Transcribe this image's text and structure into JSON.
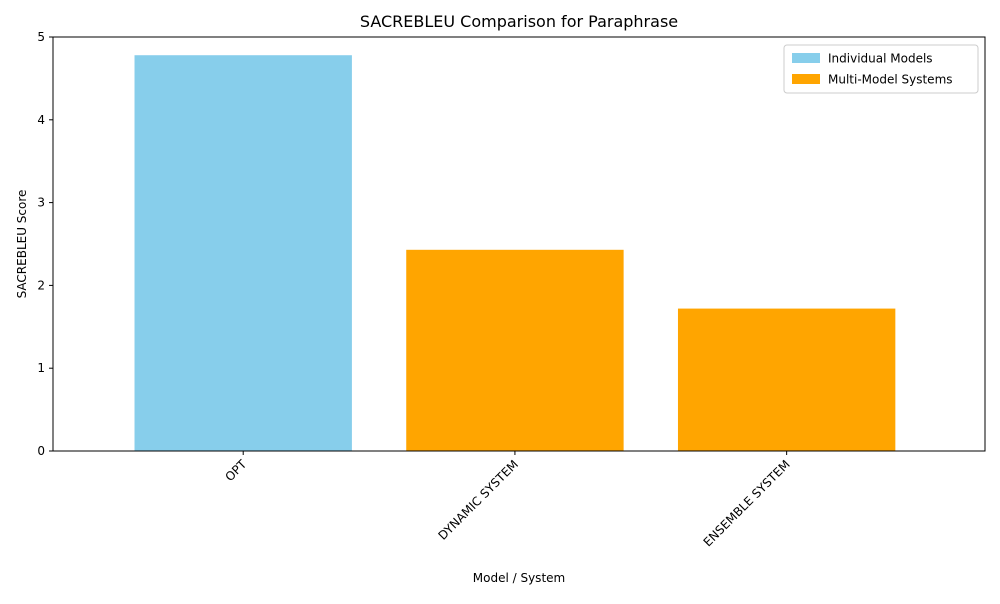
{
  "chart_data": {
    "type": "bar",
    "title": "SACREBLEU Comparison for Paraphrase",
    "xlabel": "Model / System",
    "ylabel": "SACREBLEU Score",
    "categories": [
      "OPT",
      "DYNAMIC SYSTEM",
      "ENSEMBLE SYSTEM"
    ],
    "values": [
      4.78,
      2.43,
      1.72
    ],
    "bar_groups": [
      "Individual Models",
      "Multi-Model Systems",
      "Multi-Model Systems"
    ],
    "ylim": [
      0,
      5
    ],
    "yticks": [
      0,
      1,
      2,
      3,
      4,
      5
    ],
    "grid": false,
    "legend": {
      "position": "top-right",
      "entries": [
        {
          "label": "Individual Models",
          "color": "#87CEEB"
        },
        {
          "label": "Multi-Model Systems",
          "color": "#FFA500"
        }
      ]
    }
  }
}
